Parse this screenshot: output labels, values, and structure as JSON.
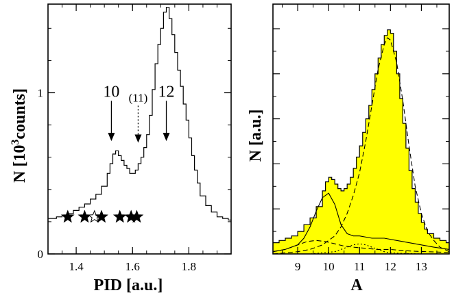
{
  "chart_data": [
    {
      "type": "line",
      "xlabel": "PID [a.u.]",
      "ylabel_main": "N [10",
      "ylabel_sup": "3",
      "ylabel_tail": "counts]",
      "xlim": [
        1.3,
        1.95
      ],
      "ylim": [
        0,
        1.55
      ],
      "xticks": [
        1.4,
        1.6,
        1.8
      ],
      "xtick_labels": [
        "1.4",
        "1.6",
        "1.8"
      ],
      "yticks": [
        0,
        1
      ],
      "ytick_labels": [
        "0",
        "1"
      ],
      "series": [
        {
          "style": "step",
          "x": [
            1.3,
            1.31,
            1.33,
            1.35,
            1.37,
            1.39,
            1.41,
            1.43,
            1.45,
            1.47,
            1.49,
            1.51,
            1.52,
            1.53,
            1.54,
            1.55,
            1.56,
            1.57,
            1.58,
            1.59,
            1.6,
            1.61,
            1.62,
            1.63,
            1.64,
            1.65,
            1.66,
            1.67,
            1.68,
            1.69,
            1.7,
            1.71,
            1.72,
            1.73,
            1.74,
            1.75,
            1.76,
            1.77,
            1.78,
            1.79,
            1.8,
            1.81,
            1.82,
            1.83,
            1.84,
            1.86,
            1.88,
            1.9,
            1.92,
            1.94,
            1.95
          ],
          "y": [
            0.22,
            0.22,
            0.23,
            0.24,
            0.25,
            0.27,
            0.29,
            0.31,
            0.34,
            0.37,
            0.42,
            0.5,
            0.56,
            0.62,
            0.64,
            0.61,
            0.58,
            0.55,
            0.53,
            0.5,
            0.5,
            0.52,
            0.56,
            0.6,
            0.66,
            0.74,
            0.86,
            1.02,
            1.18,
            1.3,
            1.4,
            1.5,
            1.53,
            1.46,
            1.36,
            1.25,
            1.14,
            1.04,
            0.93,
            0.83,
            0.72,
            0.61,
            0.52,
            0.44,
            0.36,
            0.3,
            0.26,
            0.23,
            0.22,
            0.21,
            0.21
          ]
        }
      ],
      "annotations": [
        {
          "text": "10",
          "x": 1.525,
          "arrow_from_y": 0.95,
          "arrow_to_y": 0.7,
          "style": "solid"
        },
        {
          "text": "(11)",
          "x": 1.62,
          "arrow_from_y": 0.92,
          "arrow_to_y": 0.69,
          "style": "dotted"
        },
        {
          "text": "12",
          "x": 1.72,
          "arrow_from_y": 0.95,
          "arrow_to_y": 0.7,
          "style": "solid"
        }
      ],
      "stars": [
        {
          "x": 1.37,
          "y": 0.2,
          "filled": true
        },
        {
          "x": 1.43,
          "y": 0.2,
          "filled": true
        },
        {
          "x": 1.465,
          "y": 0.2,
          "filled": false
        },
        {
          "x": 1.49,
          "y": 0.2,
          "filled": true
        },
        {
          "x": 1.555,
          "y": 0.2,
          "filled": true
        },
        {
          "x": 1.595,
          "y": 0.2,
          "filled": true
        },
        {
          "x": 1.615,
          "y": 0.2,
          "filled": true
        }
      ]
    },
    {
      "type": "area",
      "xlabel": "A",
      "ylabel": "N [a.u.]",
      "xlim": [
        8.2,
        13.9
      ],
      "ylim": [
        0,
        1.0
      ],
      "xticks": [
        9,
        10,
        11,
        12,
        13
      ],
      "xtick_labels": [
        "9",
        "10",
        "11",
        "12",
        "13"
      ],
      "series": [
        {
          "style": "step-filled",
          "color": "#ffff00",
          "x": [
            8.2,
            8.4,
            8.6,
            8.8,
            9.0,
            9.2,
            9.4,
            9.6,
            9.8,
            9.9,
            10.0,
            10.1,
            10.2,
            10.3,
            10.4,
            10.5,
            10.6,
            10.7,
            10.8,
            10.9,
            11.0,
            11.1,
            11.2,
            11.3,
            11.4,
            11.5,
            11.6,
            11.7,
            11.8,
            11.9,
            12.0,
            12.1,
            12.2,
            12.3,
            12.4,
            12.5,
            12.6,
            12.7,
            12.8,
            12.9,
            13.0,
            13.1,
            13.2,
            13.4,
            13.6,
            13.8,
            13.9
          ],
          "y": [
            0.05,
            0.06,
            0.07,
            0.08,
            0.1,
            0.13,
            0.16,
            0.21,
            0.28,
            0.32,
            0.34,
            0.33,
            0.31,
            0.29,
            0.28,
            0.29,
            0.31,
            0.34,
            0.38,
            0.43,
            0.48,
            0.54,
            0.6,
            0.66,
            0.73,
            0.8,
            0.87,
            0.93,
            0.97,
            0.995,
            0.98,
            0.9,
            0.8,
            0.69,
            0.58,
            0.47,
            0.37,
            0.29,
            0.23,
            0.18,
            0.14,
            0.11,
            0.09,
            0.07,
            0.06,
            0.05,
            0.05
          ]
        },
        {
          "style": "solid",
          "x": [
            8.2,
            8.6,
            9.0,
            9.2,
            9.4,
            9.6,
            9.8,
            10.0,
            10.2,
            10.4,
            10.6,
            10.8,
            11.0,
            11.4,
            11.8,
            12.2,
            12.6,
            13.0,
            13.4,
            13.9
          ],
          "y": [
            0.01,
            0.02,
            0.04,
            0.07,
            0.12,
            0.19,
            0.25,
            0.27,
            0.22,
            0.13,
            0.09,
            0.08,
            0.08,
            0.07,
            0.07,
            0.06,
            0.05,
            0.04,
            0.03,
            0.02
          ]
        },
        {
          "style": "dashed",
          "x": [
            8.2,
            8.6,
            9.0,
            9.4,
            9.8,
            10.2,
            10.4,
            10.6,
            10.8,
            11.0,
            11.2,
            11.4,
            11.6,
            11.8,
            11.9,
            12.0,
            12.2,
            12.4,
            12.6,
            12.8,
            13.0,
            13.2,
            13.4,
            13.6,
            13.9
          ],
          "y": [
            0.0,
            0.005,
            0.01,
            0.02,
            0.04,
            0.08,
            0.12,
            0.18,
            0.26,
            0.36,
            0.5,
            0.66,
            0.82,
            0.93,
            0.96,
            0.95,
            0.85,
            0.68,
            0.48,
            0.3,
            0.18,
            0.1,
            0.06,
            0.03,
            0.01
          ]
        },
        {
          "style": "dashed",
          "x": [
            8.2,
            8.6,
            9.0,
            9.3,
            9.6,
            9.9,
            10.2,
            10.5,
            10.8,
            11.2,
            11.6,
            12.0,
            12.4,
            12.8,
            13.2,
            13.6,
            13.9
          ],
          "y": [
            0.01,
            0.02,
            0.04,
            0.055,
            0.06,
            0.055,
            0.045,
            0.035,
            0.03,
            0.025,
            0.02,
            0.02,
            0.015,
            0.012,
            0.01,
            0.008,
            0.006
          ]
        },
        {
          "style": "dotted",
          "x": [
            8.2,
            9.4,
            9.8,
            10.2,
            10.4,
            10.6,
            10.8,
            11.0,
            11.2,
            11.4,
            11.6,
            11.8,
            12.0,
            12.4,
            13.0,
            13.9
          ],
          "y": [
            0.0,
            0.0,
            0.005,
            0.01,
            0.02,
            0.03,
            0.04,
            0.045,
            0.04,
            0.03,
            0.02,
            0.01,
            0.005,
            0.002,
            0.0,
            0.0
          ]
        }
      ]
    }
  ]
}
